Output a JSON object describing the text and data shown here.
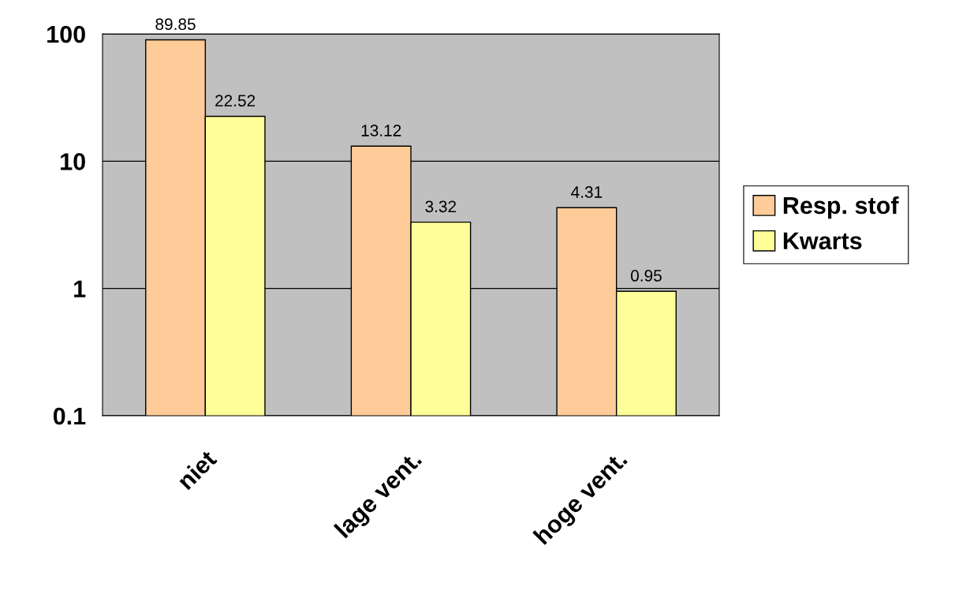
{
  "chart_data": {
    "type": "bar",
    "categories": [
      "niet",
      "lage vent.",
      "hoge vent."
    ],
    "series": [
      {
        "name": "Resp. stof",
        "color": "#ffcc99",
        "values": [
          89.85,
          13.12,
          4.31
        ]
      },
      {
        "name": "Kwarts",
        "color": "#ffff99",
        "values": [
          22.52,
          3.32,
          0.95
        ]
      }
    ],
    "log": true,
    "ylim": [
      0.1,
      100
    ],
    "yticks": [
      0.1,
      1,
      10,
      100
    ],
    "grid": "y",
    "legend": "right",
    "data_labels": true
  }
}
